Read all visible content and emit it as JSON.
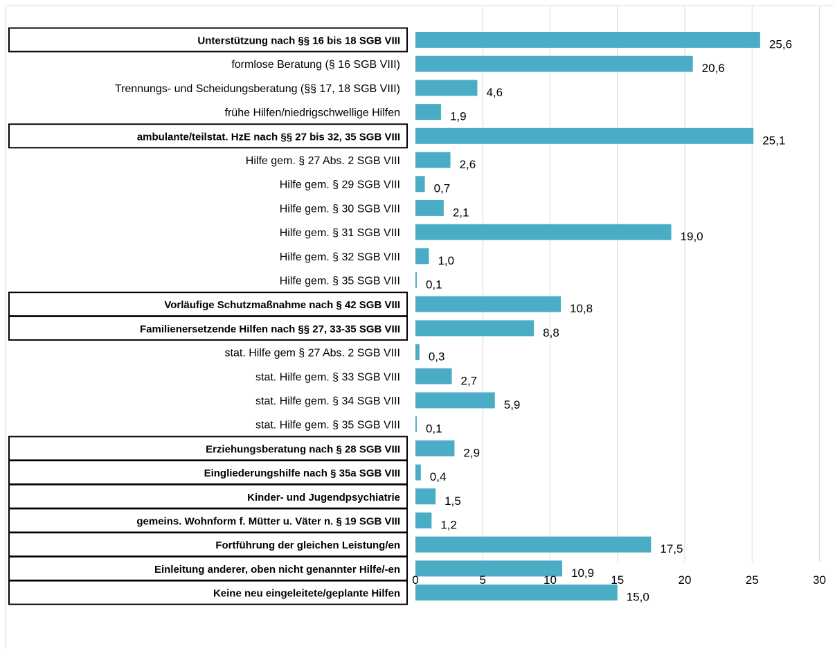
{
  "chart_data": {
    "type": "bar",
    "orientation": "horizontal",
    "title": "",
    "xlabel": "",
    "ylabel": "",
    "xlim": [
      0,
      30
    ],
    "xticks": [
      "0",
      "5",
      "10",
      "15",
      "20",
      "25",
      "30"
    ],
    "grid": true,
    "bar_color": "#4bacc6",
    "categories": [
      {
        "label": "Unterstützung nach §§ 16 bis 18 SGB VIII",
        "bold": true,
        "boxed": true
      },
      {
        "label": "formlose Beratung (§ 16 SGB VIII)",
        "bold": false,
        "boxed": false
      },
      {
        "label": "Trennungs- und Scheidungsberatung (§§ 17, 18 SGB VIII)",
        "bold": false,
        "boxed": false
      },
      {
        "label": "frühe Hilfen/niedrigschwellige Hilfen",
        "bold": false,
        "boxed": false
      },
      {
        "label": "ambulante/teilstat. HzE nach §§ 27 bis 32, 35 SGB VIII",
        "bold": true,
        "boxed": true
      },
      {
        "label": "Hilfe gem. § 27 Abs. 2 SGB VIII",
        "bold": false,
        "boxed": false
      },
      {
        "label": "Hilfe gem. § 29 SGB VIII",
        "bold": false,
        "boxed": false
      },
      {
        "label": "Hilfe gem. § 30 SGB VIII",
        "bold": false,
        "boxed": false
      },
      {
        "label": "Hilfe gem. § 31 SGB VIII",
        "bold": false,
        "boxed": false
      },
      {
        "label": "Hilfe gem. § 32 SGB VIII",
        "bold": false,
        "boxed": false
      },
      {
        "label": "Hilfe gem. § 35 SGB VIII",
        "bold": false,
        "boxed": false
      },
      {
        "label": "Vorläufige Schutzmaßnahme nach § 42 SGB VIII",
        "bold": true,
        "boxed": true
      },
      {
        "label": "Familienersetzende Hilfen nach §§ 27, 33-35 SGB VIII",
        "bold": true,
        "boxed": true
      },
      {
        "label": "stat. Hilfe gem § 27 Abs. 2 SGB VIII",
        "bold": false,
        "boxed": false
      },
      {
        "label": "stat. Hilfe gem. § 33 SGB VIII",
        "bold": false,
        "boxed": false
      },
      {
        "label": "stat. Hilfe gem. § 34 SGB VIII",
        "bold": false,
        "boxed": false
      },
      {
        "label": "stat. Hilfe gem. § 35 SGB VIII",
        "bold": false,
        "boxed": false
      },
      {
        "label": "Erziehungsberatung nach § 28 SGB VIII",
        "bold": true,
        "boxed": true
      },
      {
        "label": "Eingliederungshilfe nach § 35a SGB VIII",
        "bold": true,
        "boxed": true
      },
      {
        "label": "Kinder- und Jugendpsychiatrie",
        "bold": true,
        "boxed": true
      },
      {
        "label": "gemeins. Wohnform f. Mütter u. Väter n. § 19 SGB VIII",
        "bold": true,
        "boxed": true
      },
      {
        "label": "Fortführung der gleichen Leistung/en",
        "bold": true,
        "boxed": true
      },
      {
        "label": "Einleitung anderer, oben nicht genannter Hilfe/-en",
        "bold": true,
        "boxed": true
      },
      {
        "label": "Keine neu eingeleitete/geplante Hilfen",
        "bold": true,
        "boxed": true
      }
    ],
    "values": [
      25.6,
      20.6,
      4.6,
      1.9,
      25.1,
      2.6,
      0.7,
      2.1,
      19.0,
      1.0,
      0.1,
      10.8,
      8.8,
      0.3,
      2.7,
      5.9,
      0.1,
      2.9,
      0.4,
      1.5,
      1.2,
      17.5,
      10.9,
      15.0
    ],
    "value_labels": [
      "25,6",
      "20,6",
      "4,6",
      "1,9",
      "25,1",
      "2,6",
      "0,7",
      "2,1",
      "19,0",
      "1,0",
      "0,1",
      "10,8",
      "8,8",
      "0,3",
      "2,7",
      "5,9",
      "0,1",
      "2,9",
      "0,4",
      "1,5",
      "1,2",
      "17,5",
      "10,9",
      "15,0"
    ]
  }
}
